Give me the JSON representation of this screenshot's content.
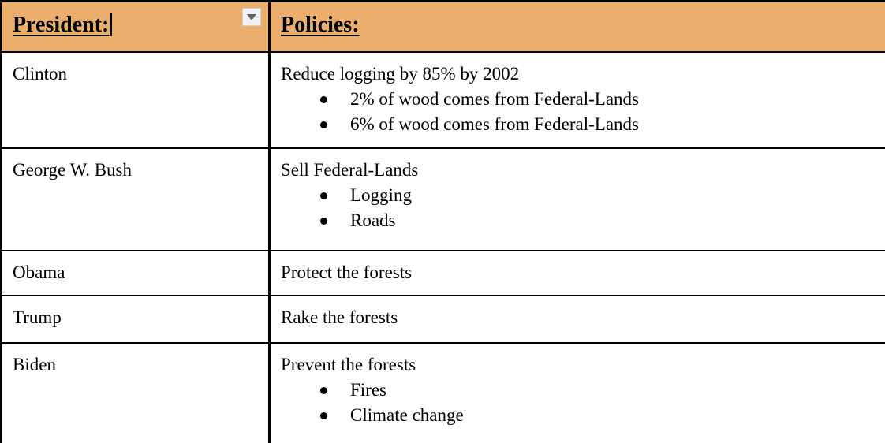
{
  "table": {
    "columns": [
      {
        "label": "President:"
      },
      {
        "label": "Policies:"
      }
    ],
    "rows": [
      {
        "president": "Clinton",
        "policy": "Reduce logging by 85% by 2002",
        "bullets": [
          "2% of wood comes from Federal-Lands",
          "6% of wood comes from Federal-Lands"
        ]
      },
      {
        "president": "George W. Bush",
        "policy": "Sell Federal-Lands",
        "bullets": [
          "Logging",
          "Roads"
        ]
      },
      {
        "president": "Obama",
        "policy": "Protect the forests",
        "bullets": []
      },
      {
        "president": "Trump",
        "policy": "Rake the forests",
        "bullets": []
      },
      {
        "president": "Biden",
        "policy": "Prevent the forests",
        "bullets": [
          "Fires",
          "Climate change"
        ]
      }
    ]
  },
  "header_widgets": {
    "dropdown_icon": "chevron-down-icon",
    "text_cursor_visible": true
  },
  "colors": {
    "header_background": "#EBAE6D",
    "table_border": "#000000",
    "text": "#000000",
    "body_background": "#FFFFFF",
    "dropdown_button_background": "#F1F1F1",
    "dropdown_button_border": "#CFCFCF",
    "dropdown_arrow": "#5F6368"
  }
}
